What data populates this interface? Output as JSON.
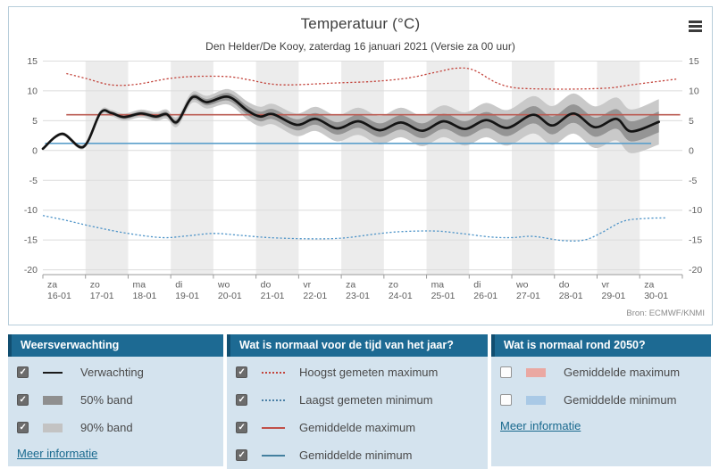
{
  "widget": {
    "title": "Temperatuur (°C)",
    "subtitle": "Den Helder/De Kooy, zaterdag 16 januari 2021 (Versie za 00 uur)",
    "source": "Bron: ECMWF/KNMI",
    "menu_icon": "hamburger-icon"
  },
  "chart_data": {
    "type": "line",
    "title": "Temperatuur (°C)",
    "subtitle": "Den Helder/De Kooy, zaterdag 16 januari 2021 (Versie za 00 uur)",
    "source": "Bron: ECMWF/KNMI",
    "grid": true,
    "legend_position": "bottom-panels",
    "ylim": [
      -20,
      15
    ],
    "yticks": [
      15,
      10,
      5,
      0,
      -5,
      -10,
      -15,
      -20
    ],
    "x_days": [
      {
        "dow": "za",
        "date": "16-01"
      },
      {
        "dow": "zo",
        "date": "17-01"
      },
      {
        "dow": "ma",
        "date": "18-01"
      },
      {
        "dow": "di",
        "date": "19-01"
      },
      {
        "dow": "wo",
        "date": "20-01"
      },
      {
        "dow": "do",
        "date": "21-01"
      },
      {
        "dow": "vr",
        "date": "22-01"
      },
      {
        "dow": "za",
        "date": "23-01"
      },
      {
        "dow": "zo",
        "date": "24-01"
      },
      {
        "dow": "ma",
        "date": "25-01"
      },
      {
        "dow": "di",
        "date": "26-01"
      },
      {
        "dow": "wo",
        "date": "27-01"
      },
      {
        "dow": "do",
        "date": "28-01"
      },
      {
        "dow": "vr",
        "date": "29-01"
      },
      {
        "dow": "za",
        "date": "30-01"
      }
    ],
    "colors": {
      "day_band": "#ececec",
      "gridline": "#dcdcdc",
      "axis": "#9b9b9b",
      "tick_text": "#5f5f5f",
      "band90": "#c9c9c9",
      "band50": "#959595",
      "median": "#141414",
      "red_dashed": "#c3443c",
      "blue_dashed": "#4e94c8",
      "red_solid": "#bb5c53",
      "blue_solid": "#5b9fcb"
    },
    "series": [
      {
        "id": "band90",
        "name": "90% band",
        "type": "band",
        "color": "#c9c9c9",
        "half_width": [
          [
            0,
            0.2
          ],
          [
            2,
            0.6
          ],
          [
            3.5,
            0.9
          ],
          [
            5,
            1.6
          ],
          [
            7,
            2.2
          ],
          [
            9,
            2.6
          ],
          [
            11,
            3.0
          ],
          [
            13,
            3.5
          ],
          [
            14.45,
            3.8
          ]
        ]
      },
      {
        "id": "band50",
        "name": "50% band",
        "type": "band",
        "color": "#959595",
        "half_width": [
          [
            0,
            0.1
          ],
          [
            2,
            0.3
          ],
          [
            3.5,
            0.45
          ],
          [
            5,
            0.8
          ],
          [
            7,
            1.05
          ],
          [
            9,
            1.25
          ],
          [
            11,
            1.4
          ],
          [
            13,
            1.6
          ],
          [
            14.45,
            1.75
          ]
        ]
      },
      {
        "id": "gemiddelde_maximum",
        "name": "Gemiddelde maximum",
        "type": "line",
        "style": "solid",
        "color": "#bb5c53",
        "width": 1.6,
        "points": [
          [
            0.55,
            6.0
          ],
          [
            14.95,
            6.0
          ]
        ]
      },
      {
        "id": "gemiddelde_minimum",
        "name": "Gemiddelde minimum",
        "type": "line",
        "style": "solid",
        "color": "#5b9fcb",
        "width": 1.6,
        "points": [
          [
            0.05,
            1.2
          ],
          [
            14.27,
            1.2
          ]
        ]
      },
      {
        "id": "hoogst_gemeten_maximum",
        "name": "Hoogst gemeten maximum",
        "type": "line",
        "style": "dashed",
        "color": "#c3443c",
        "width": 1.3,
        "points": [
          [
            0.55,
            12.9
          ],
          [
            1.0,
            12.1
          ],
          [
            1.6,
            11.0
          ],
          [
            2.2,
            11.1
          ],
          [
            2.9,
            12.0
          ],
          [
            3.5,
            12.4
          ],
          [
            4.3,
            12.4
          ],
          [
            4.8,
            11.9
          ],
          [
            5.3,
            11.2
          ],
          [
            5.8,
            11.0
          ],
          [
            6.8,
            11.3
          ],
          [
            7.8,
            11.6
          ],
          [
            8.6,
            12.2
          ],
          [
            9.2,
            13.1
          ],
          [
            9.7,
            13.8
          ],
          [
            10.1,
            13.5
          ],
          [
            10.6,
            11.5
          ],
          [
            11.0,
            10.6
          ],
          [
            11.5,
            10.35
          ],
          [
            12.5,
            10.3
          ],
          [
            13.3,
            10.5
          ],
          [
            13.8,
            11.0
          ],
          [
            14.9,
            12.0
          ]
        ]
      },
      {
        "id": "laagst_gemeten_minimum",
        "name": "Laagst gemeten minimum",
        "type": "line",
        "style": "dashed",
        "color": "#4e94c8",
        "width": 1.3,
        "points": [
          [
            0,
            -10.9
          ],
          [
            0.6,
            -11.8
          ],
          [
            1.2,
            -12.8
          ],
          [
            2.0,
            -13.9
          ],
          [
            2.8,
            -14.6
          ],
          [
            3.4,
            -14.3
          ],
          [
            4.0,
            -13.9
          ],
          [
            4.6,
            -14.2
          ],
          [
            5.3,
            -14.6
          ],
          [
            6.2,
            -14.8
          ],
          [
            7.0,
            -14.7
          ],
          [
            7.8,
            -14.0
          ],
          [
            8.4,
            -13.6
          ],
          [
            9.2,
            -13.5
          ],
          [
            9.8,
            -13.9
          ],
          [
            10.5,
            -14.5
          ],
          [
            11.0,
            -14.6
          ],
          [
            11.5,
            -14.4
          ],
          [
            12.2,
            -15.1
          ],
          [
            12.7,
            -15.0
          ],
          [
            13.1,
            -13.8
          ],
          [
            13.6,
            -11.9
          ],
          [
            14.1,
            -11.4
          ],
          [
            14.6,
            -11.3
          ]
        ]
      },
      {
        "id": "verwachting",
        "name": "Verwachting",
        "type": "line",
        "style": "solid",
        "color": "#141414",
        "width": 2.7,
        "points": [
          [
            0,
            0.3
          ],
          [
            0.45,
            2.8
          ],
          [
            0.95,
            0.6
          ],
          [
            1.35,
            6.3
          ],
          [
            1.6,
            6.3
          ],
          [
            1.9,
            5.6
          ],
          [
            2.3,
            6.2
          ],
          [
            2.65,
            5.7
          ],
          [
            2.9,
            6.1
          ],
          [
            3.15,
            4.8
          ],
          [
            3.5,
            8.9
          ],
          [
            3.85,
            8.1
          ],
          [
            4.35,
            9.0
          ],
          [
            4.8,
            6.7
          ],
          [
            5.1,
            5.7
          ],
          [
            5.4,
            6.1
          ],
          [
            5.95,
            4.3
          ],
          [
            6.4,
            5.3
          ],
          [
            6.9,
            3.7
          ],
          [
            7.4,
            4.9
          ],
          [
            7.9,
            3.4
          ],
          [
            8.4,
            4.7
          ],
          [
            8.9,
            3.3
          ],
          [
            9.4,
            4.9
          ],
          [
            9.9,
            3.6
          ],
          [
            10.4,
            5.1
          ],
          [
            10.9,
            3.8
          ],
          [
            11.5,
            6.0
          ],
          [
            11.95,
            4.2
          ],
          [
            12.45,
            6.2
          ],
          [
            12.95,
            3.9
          ],
          [
            13.45,
            5.3
          ],
          [
            13.8,
            3.2
          ],
          [
            14.45,
            4.8
          ]
        ]
      }
    ]
  },
  "panels": [
    {
      "title": "Weersverwachting",
      "items": [
        {
          "checked": true,
          "label": "Verwachting"
        },
        {
          "checked": true,
          "label": "50% band"
        },
        {
          "checked": true,
          "label": "90% band"
        }
      ],
      "link": "Meer informatie"
    },
    {
      "title": "Wat is normaal voor de tijd van het jaar?",
      "items": [
        {
          "checked": true,
          "label": "Hoogst gemeten maximum"
        },
        {
          "checked": true,
          "label": "Laagst gemeten minimum"
        },
        {
          "checked": true,
          "label": "Gemiddelde maximum"
        },
        {
          "checked": true,
          "label": "Gemiddelde minimum"
        }
      ]
    },
    {
      "title": "Wat is normaal rond 2050?",
      "items": [
        {
          "checked": false,
          "label": "Gemiddelde maximum"
        },
        {
          "checked": false,
          "label": "Gemiddelde minimum"
        }
      ],
      "link": "Meer informatie"
    }
  ]
}
